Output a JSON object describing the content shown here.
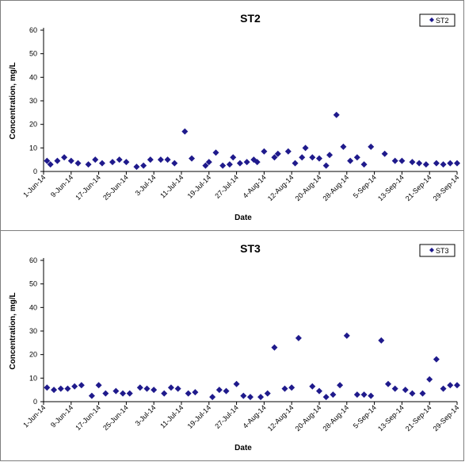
{
  "chart_data": [
    {
      "type": "scatter",
      "title": "ST2",
      "xlabel": "Date",
      "ylabel": "Concentration, mg/L",
      "ylim": [
        0,
        60
      ],
      "yticks": [
        "0",
        "10",
        "20",
        "30",
        "40",
        "50",
        "60"
      ],
      "xlim": [
        "2014-06-01",
        "2014-09-29"
      ],
      "xtick_labels": [
        "1-Jun-14",
        "9-Jun-14",
        "17-Jun-14",
        "25-Jun-14",
        "3-Jul-14",
        "11-Jul-14",
        "19-Jul-14",
        "27-Jul-14",
        "4-Aug-14",
        "12-Aug-14",
        "20-Aug-14",
        "28-Aug-14",
        "5-Sep-14",
        "13-Sep-14",
        "21-Sep-14",
        "29-Sep-14"
      ],
      "legend_position": "top-right",
      "grid": false,
      "marker_color": "#1F1A8C",
      "series": [
        {
          "name": "ST2",
          "x": [
            "2014-06-02",
            "2014-06-03",
            "2014-06-05",
            "2014-06-07",
            "2014-06-09",
            "2014-06-11",
            "2014-06-14",
            "2014-06-16",
            "2014-06-18",
            "2014-06-21",
            "2014-06-23",
            "2014-06-25",
            "2014-06-28",
            "2014-06-30",
            "2014-07-02",
            "2014-07-05",
            "2014-07-07",
            "2014-07-09",
            "2014-07-12",
            "2014-07-14",
            "2014-07-18",
            "2014-07-19",
            "2014-07-21",
            "2014-07-23",
            "2014-07-25",
            "2014-07-26",
            "2014-07-28",
            "2014-07-30",
            "2014-08-01",
            "2014-08-02",
            "2014-08-04",
            "2014-08-07",
            "2014-08-08",
            "2014-08-11",
            "2014-08-13",
            "2014-08-15",
            "2014-08-16",
            "2014-08-18",
            "2014-08-20",
            "2014-08-22",
            "2014-08-23",
            "2014-08-25",
            "2014-08-27",
            "2014-08-29",
            "2014-08-31",
            "2014-09-02",
            "2014-09-04",
            "2014-09-08",
            "2014-09-11",
            "2014-09-13",
            "2014-09-16",
            "2014-09-18",
            "2014-09-20",
            "2014-09-23",
            "2014-09-25",
            "2014-09-27",
            "2014-09-29"
          ],
          "values": [
            4.5,
            3,
            4.5,
            6,
            4.5,
            3.5,
            3,
            5,
            3.5,
            4,
            5,
            4,
            2,
            2.5,
            5,
            5,
            5,
            3.5,
            17,
            5.5,
            2.5,
            4,
            8,
            2.5,
            3,
            6,
            3.5,
            4,
            5,
            4,
            8.5,
            6,
            7.5,
            8.5,
            3.5,
            6,
            10,
            6,
            5.5,
            2.5,
            7,
            24,
            10.5,
            4.5,
            6,
            3,
            10.5,
            7.5,
            4.5,
            4.5,
            4,
            3.5,
            3,
            3.5,
            3,
            3.5,
            3.5
          ]
        }
      ]
    },
    {
      "type": "scatter",
      "title": "ST3",
      "xlabel": "Date",
      "ylabel": "Concentration, mg/L",
      "ylim": [
        0,
        60
      ],
      "yticks": [
        "0",
        "10",
        "20",
        "30",
        "40",
        "50",
        "60"
      ],
      "xlim": [
        "2014-06-01",
        "2014-09-29"
      ],
      "xtick_labels": [
        "1-Jun-14",
        "9-Jun-14",
        "17-Jun-14",
        "25-Jun-14",
        "3-Jul-14",
        "11-Jul-14",
        "19-Jul-14",
        "27-Jul-14",
        "4-Aug-14",
        "12-Aug-14",
        "20-Aug-14",
        "28-Aug-14",
        "5-Sep-14",
        "13-Sep-14",
        "21-Sep-14",
        "29-Sep-14"
      ],
      "legend_position": "top-right",
      "grid": false,
      "marker_color": "#1F1A8C",
      "series": [
        {
          "name": "ST3",
          "x": [
            "2014-06-02",
            "2014-06-04",
            "2014-06-06",
            "2014-06-08",
            "2014-06-10",
            "2014-06-12",
            "2014-06-15",
            "2014-06-17",
            "2014-06-19",
            "2014-06-22",
            "2014-06-24",
            "2014-06-26",
            "2014-06-29",
            "2014-07-01",
            "2014-07-03",
            "2014-07-06",
            "2014-07-08",
            "2014-07-10",
            "2014-07-13",
            "2014-07-15",
            "2014-07-20",
            "2014-07-22",
            "2014-07-24",
            "2014-07-27",
            "2014-07-29",
            "2014-07-31",
            "2014-08-03",
            "2014-08-05",
            "2014-08-07",
            "2014-08-10",
            "2014-08-12",
            "2014-08-14",
            "2014-08-18",
            "2014-08-20",
            "2014-08-22",
            "2014-08-24",
            "2014-08-26",
            "2014-08-28",
            "2014-08-31",
            "2014-09-02",
            "2014-09-04",
            "2014-09-07",
            "2014-09-09",
            "2014-09-11",
            "2014-09-14",
            "2014-09-16",
            "2014-09-19",
            "2014-09-21",
            "2014-09-23",
            "2014-09-25",
            "2014-09-27",
            "2014-09-29"
          ],
          "values": [
            6,
            5,
            5.5,
            5.5,
            6.5,
            7,
            2.5,
            7,
            3.5,
            4.5,
            3.5,
            3.5,
            6,
            5.5,
            5,
            3.5,
            6,
            5.5,
            3.5,
            4,
            2,
            5,
            4.5,
            7.5,
            2.5,
            2,
            2,
            3.5,
            23,
            5.5,
            6,
            27,
            6.5,
            4.5,
            2,
            3,
            7,
            28,
            3,
            3,
            2.5,
            26,
            7.5,
            5.5,
            5,
            3.5,
            3.5,
            9.5,
            18,
            5.5,
            7,
            7
          ]
        }
      ]
    }
  ]
}
